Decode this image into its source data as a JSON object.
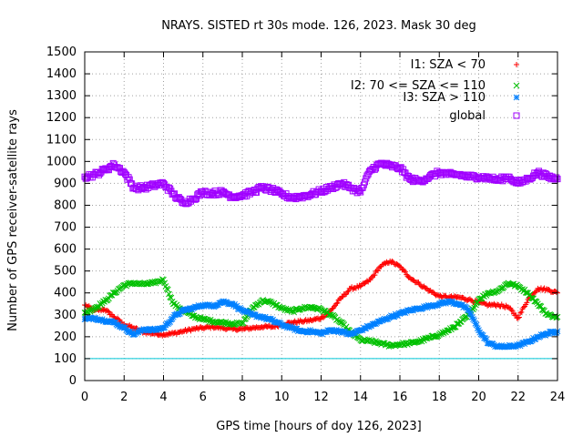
{
  "chart_data": {
    "type": "scatter",
    "title": "NRAYS. SISTED rt 30s mode. 126, 2023. Mask 30 deg",
    "xlabel": "GPS time [hours of doy 126, 2023]",
    "ylabel": "Number of GPS receiver-satellite rays",
    "xlim": [
      0,
      24
    ],
    "ylim": [
      0,
      1500
    ],
    "xticks": [
      "0",
      "2",
      "4",
      "6",
      "8",
      "10",
      "12",
      "14",
      "16",
      "18",
      "20",
      "22",
      "24"
    ],
    "yticks": [
      "0",
      "100",
      "200",
      "300",
      "400",
      "500",
      "600",
      "700",
      "800",
      "900",
      "1000",
      "1100",
      "1200",
      "1300",
      "1400",
      "1500"
    ],
    "grid": true,
    "legend_position": "top-right",
    "threshold_line": {
      "y": 100,
      "color": "#00c8d8"
    },
    "series": [
      {
        "name": "I1: SZA < 70",
        "marker": "+",
        "color": "#ff0000",
        "x": [
          0,
          0.5,
          1,
          1.5,
          2,
          2.5,
          3,
          3.5,
          4,
          4.5,
          5,
          5.5,
          6,
          6.5,
          7,
          7.5,
          8,
          8.5,
          9,
          9.5,
          10,
          10.5,
          11,
          11.5,
          12,
          12.5,
          13,
          13.5,
          14,
          14.5,
          15,
          15.5,
          16,
          16.5,
          17,
          17.5,
          18,
          18.5,
          19,
          19.5,
          20,
          20.5,
          21,
          21.5,
          22,
          22.5,
          23,
          23.5,
          24
        ],
        "values": [
          345,
          320,
          325,
          290,
          255,
          240,
          220,
          215,
          210,
          215,
          225,
          235,
          240,
          245,
          240,
          235,
          235,
          240,
          245,
          245,
          255,
          265,
          270,
          275,
          285,
          320,
          375,
          420,
          430,
          460,
          520,
          545,
          520,
          470,
          440,
          410,
          385,
          380,
          380,
          370,
          355,
          345,
          345,
          335,
          285,
          370,
          420,
          415,
          400
        ]
      },
      {
        "name": "I2: 70 <= SZA <= 110",
        "marker": "x",
        "color": "#00c000",
        "x": [
          0,
          0.5,
          1,
          1.5,
          2,
          2.5,
          3,
          3.5,
          4,
          4.5,
          5,
          5.5,
          6,
          6.5,
          7,
          7.5,
          8,
          8.5,
          9,
          9.5,
          10,
          10.5,
          11,
          11.5,
          12,
          12.5,
          13,
          13.5,
          14,
          14.5,
          15,
          15.5,
          16,
          16.5,
          17,
          17.5,
          18,
          18.5,
          19,
          19.5,
          20,
          20.5,
          21,
          21.5,
          22,
          22.5,
          23,
          23.5,
          24
        ],
        "values": [
          310,
          330,
          360,
          400,
          435,
          445,
          440,
          445,
          460,
          350,
          320,
          295,
          280,
          270,
          265,
          260,
          260,
          330,
          365,
          355,
          330,
          315,
          330,
          335,
          325,
          300,
          265,
          220,
          185,
          180,
          170,
          160,
          165,
          170,
          180,
          195,
          210,
          230,
          260,
          300,
          370,
          400,
          410,
          445,
          430,
          400,
          350,
          300,
          290
        ]
      },
      {
        "name": "I3: SZA > 110",
        "marker": "*",
        "color": "#0080ff",
        "x": [
          0,
          0.5,
          1,
          1.5,
          2,
          2.5,
          3,
          3.5,
          4,
          4.5,
          5,
          5.5,
          6,
          6.5,
          7,
          7.5,
          8,
          8.5,
          9,
          9.5,
          10,
          10.5,
          11,
          11.5,
          12,
          12.5,
          13,
          13.5,
          14,
          14.5,
          15,
          15.5,
          16,
          16.5,
          17,
          17.5,
          18,
          18.5,
          19,
          19.5,
          20,
          20.5,
          21,
          21.5,
          22,
          22.5,
          23,
          23.5,
          24
        ],
        "values": [
          280,
          285,
          275,
          265,
          240,
          210,
          235,
          230,
          240,
          290,
          320,
          330,
          345,
          340,
          360,
          350,
          320,
          300,
          290,
          275,
          255,
          240,
          225,
          225,
          215,
          230,
          225,
          210,
          230,
          250,
          270,
          290,
          305,
          320,
          330,
          340,
          350,
          360,
          350,
          320,
          230,
          170,
          155,
          155,
          160,
          175,
          200,
          215,
          225
        ]
      },
      {
        "name": "global",
        "marker": "square",
        "color": "#a000ff",
        "x": [
          0,
          0.5,
          1,
          1.5,
          2,
          2.5,
          3,
          3.5,
          4,
          4.5,
          5,
          5.5,
          6,
          6.5,
          7,
          7.5,
          8,
          8.5,
          9,
          9.5,
          10,
          10.5,
          11,
          11.5,
          12,
          12.5,
          13,
          13.5,
          14,
          14.5,
          15,
          15.5,
          16,
          16.5,
          17,
          17.5,
          18,
          18.5,
          19,
          19.5,
          20,
          20.5,
          21,
          21.5,
          22,
          22.5,
          23,
          23.5,
          24
        ],
        "values": [
          930,
          940,
          960,
          985,
          950,
          880,
          880,
          890,
          900,
          850,
          810,
          830,
          860,
          855,
          860,
          840,
          845,
          860,
          880,
          870,
          850,
          835,
          840,
          850,
          865,
          880,
          900,
          880,
          860,
          960,
          990,
          980,
          970,
          920,
          910,
          930,
          950,
          940,
          940,
          930,
          930,
          925,
          915,
          930,
          900,
          920,
          950,
          930,
          920
        ]
      }
    ]
  }
}
